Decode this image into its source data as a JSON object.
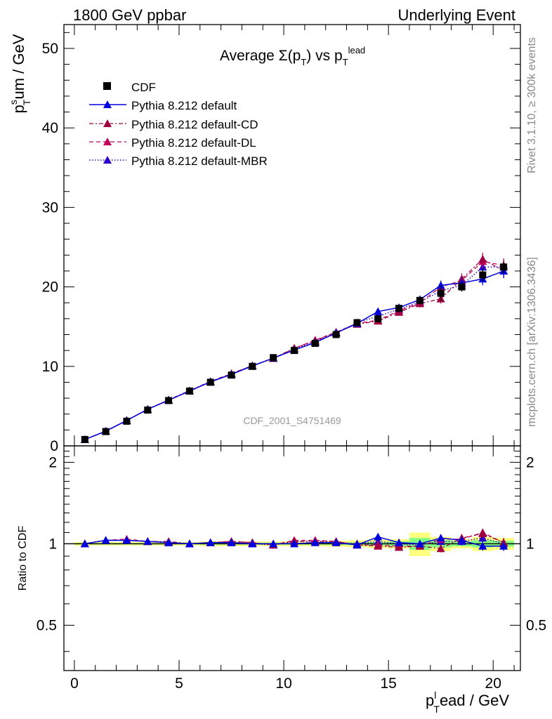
{
  "header": {
    "left": "1800 GeV ppbar",
    "right": "Underlying Event"
  },
  "side_labels": {
    "rivet": "Rivet 3.1.10, ≥ 300k events",
    "mcplots": "mcplots.cern.ch [arXiv:1306.3436]"
  },
  "watermark": "CDF_2001_S4751469",
  "colors": {
    "cdf": "#000000",
    "default": "#0000dd",
    "cd": "#a00040",
    "dl": "#c0005a",
    "mbr": "#2a00cc",
    "band_yellow": "#ffff80",
    "band_green": "#80ff80"
  },
  "chart_data": [
    {
      "type": "line",
      "title_parts": {
        "main": "Average Σ(p",
        "sub1": "T",
        "mid": ") vs p",
        "sub2": "T",
        "sup2": "lead"
      },
      "ylabel_parts": {
        "p": "p",
        "sup": "s",
        "sub": "T",
        "rest": "um / GeV"
      },
      "xlim": [
        -0.5,
        21.3
      ],
      "ylim": [
        0,
        53
      ],
      "yticks": [
        0,
        10,
        20,
        30,
        40,
        50
      ],
      "ytick_labels": [
        "0",
        "10",
        "20",
        "30",
        "40",
        "50"
      ],
      "x": [
        0.5,
        1.5,
        2.5,
        3.5,
        4.5,
        5.5,
        6.5,
        7.5,
        8.5,
        9.5,
        10.5,
        11.5,
        12.5,
        13.5,
        14.5,
        15.5,
        16.5,
        17.5,
        18.5,
        19.5,
        20.5
      ],
      "series": [
        {
          "name": "CDF",
          "style": "marker-square",
          "values": [
            0.8,
            1.8,
            3.1,
            4.5,
            5.7,
            6.9,
            8.0,
            8.9,
            10.0,
            11.1,
            12.0,
            12.9,
            14.0,
            15.5,
            16.0,
            17.3,
            18.3,
            19.2,
            20.0,
            21.5,
            22.5
          ],
          "errors": [
            0.1,
            0.1,
            0.1,
            0.1,
            0.1,
            0.1,
            0.15,
            0.15,
            0.15,
            0.2,
            0.2,
            0.2,
            0.3,
            0.3,
            0.4,
            0.5,
            0.5,
            1.0,
            0.6,
            0.8,
            0.8
          ]
        },
        {
          "name": "Pythia 8.212 default",
          "style": "solid",
          "values": [
            0.8,
            1.85,
            3.2,
            4.6,
            5.75,
            6.9,
            8.05,
            9.0,
            10.05,
            11.05,
            12.05,
            13.0,
            14.2,
            15.4,
            16.9,
            17.4,
            18.4,
            20.2,
            20.5,
            21.0,
            22.0
          ],
          "errors": [
            0.02,
            0.03,
            0.04,
            0.05,
            0.06,
            0.07,
            0.08,
            0.09,
            0.1,
            0.12,
            0.14,
            0.16,
            0.2,
            0.25,
            0.3,
            0.4,
            0.5,
            0.6,
            0.7,
            0.8,
            0.9
          ]
        },
        {
          "name": "Pythia 8.212 default-CD",
          "style": "dashdot",
          "values": [
            0.8,
            1.85,
            3.2,
            4.6,
            5.8,
            6.95,
            8.1,
            9.1,
            10.1,
            11.0,
            12.3,
            13.2,
            14.3,
            15.3,
            15.7,
            16.8,
            17.9,
            18.5,
            21.0,
            23.5,
            22.0
          ],
          "errors": [
            0.02,
            0.03,
            0.04,
            0.05,
            0.06,
            0.07,
            0.08,
            0.09,
            0.1,
            0.12,
            0.14,
            0.16,
            0.2,
            0.25,
            0.3,
            0.4,
            0.5,
            0.6,
            0.7,
            0.8,
            0.9
          ]
        },
        {
          "name": "Pythia 8.212 default-DL",
          "style": "dashed",
          "values": [
            0.8,
            1.85,
            3.2,
            4.6,
            5.75,
            6.9,
            8.1,
            9.05,
            10.1,
            11.0,
            12.25,
            13.3,
            14.3,
            15.4,
            15.8,
            17.0,
            18.0,
            20.0,
            20.8,
            23.2,
            22.7
          ],
          "errors": [
            0.02,
            0.03,
            0.04,
            0.05,
            0.06,
            0.07,
            0.08,
            0.09,
            0.1,
            0.12,
            0.14,
            0.16,
            0.2,
            0.25,
            0.3,
            0.4,
            0.5,
            0.6,
            0.7,
            0.8,
            0.9
          ]
        },
        {
          "name": "Pythia 8.212 default-MBR",
          "style": "dotted",
          "values": [
            0.8,
            1.85,
            3.2,
            4.6,
            5.75,
            6.9,
            8.05,
            9.0,
            10.05,
            11.0,
            12.2,
            13.1,
            14.2,
            15.5,
            16.3,
            17.2,
            18.1,
            19.5,
            20.2,
            22.5,
            22.5
          ],
          "errors": [
            0.02,
            0.03,
            0.04,
            0.05,
            0.06,
            0.07,
            0.08,
            0.09,
            0.1,
            0.12,
            0.14,
            0.16,
            0.2,
            0.25,
            0.3,
            0.4,
            0.5,
            0.6,
            0.7,
            0.8,
            0.9
          ]
        }
      ]
    },
    {
      "type": "line",
      "ylabel": "Ratio to CDF",
      "xlabel_parts": {
        "p": "p",
        "sub": "T",
        "sup": "l",
        "rest": "ead / GeV"
      },
      "xlim": [
        -0.5,
        21.3
      ],
      "ylim": [
        0.34,
        2.3
      ],
      "yscale": "log",
      "yticks": [
        0.5,
        1,
        2
      ],
      "ytick_labels": [
        "0.5",
        "1",
        "2"
      ],
      "xticks": [
        0,
        5,
        10,
        15,
        20
      ],
      "xtick_labels": [
        "0",
        "5",
        "10",
        "15",
        "20"
      ],
      "x": [
        0.5,
        1.5,
        2.5,
        3.5,
        4.5,
        5.5,
        6.5,
        7.5,
        8.5,
        9.5,
        10.5,
        11.5,
        12.5,
        13.5,
        14.5,
        15.5,
        16.5,
        17.5,
        18.5,
        19.5,
        20.5
      ],
      "band_yellow": [
        0.015,
        0.015,
        0.015,
        0.015,
        0.015,
        0.015,
        0.02,
        0.02,
        0.02,
        0.02,
        0.02,
        0.02,
        0.025,
        0.03,
        0.035,
        0.04,
        0.1,
        0.06,
        0.04,
        0.06,
        0.05
      ],
      "band_green": [
        0.006,
        0.006,
        0.006,
        0.006,
        0.006,
        0.006,
        0.008,
        0.008,
        0.008,
        0.008,
        0.008,
        0.008,
        0.01,
        0.012,
        0.015,
        0.02,
        0.05,
        0.03,
        0.02,
        0.03,
        0.025
      ],
      "series": [
        {
          "name": "Pythia 8.212 default",
          "style": "solid",
          "values": [
            1.0,
            1.03,
            1.03,
            1.02,
            1.01,
            1.0,
            1.01,
            1.01,
            1.0,
            1.0,
            1.0,
            1.01,
            1.01,
            0.99,
            1.06,
            1.01,
            1.0,
            1.05,
            1.03,
            0.98,
            0.98
          ]
        },
        {
          "name": "Pythia 8.212 default-CD",
          "style": "dashdot",
          "values": [
            1.0,
            1.03,
            1.03,
            1.02,
            1.02,
            1.0,
            1.01,
            1.02,
            1.01,
            0.99,
            1.02,
            1.02,
            1.02,
            0.99,
            0.98,
            0.97,
            0.98,
            0.96,
            1.05,
            1.09,
            1.01
          ]
        },
        {
          "name": "Pythia 8.212 default-DL",
          "style": "dashed",
          "values": [
            1.0,
            1.03,
            1.04,
            1.02,
            1.01,
            1.0,
            1.01,
            1.02,
            1.01,
            0.99,
            1.03,
            1.03,
            1.02,
            0.99,
            0.99,
            0.98,
            0.98,
            1.04,
            1.04,
            1.1,
            1.01
          ]
        },
        {
          "name": "Pythia 8.212 default-MBR",
          "style": "dotted",
          "values": [
            1.0,
            1.03,
            1.03,
            1.02,
            1.01,
            1.0,
            1.01,
            1.01,
            1.0,
            0.99,
            1.02,
            1.02,
            1.01,
            1.0,
            1.02,
            1.0,
            0.99,
            1.02,
            1.02,
            1.05,
            1.0
          ]
        }
      ]
    }
  ]
}
